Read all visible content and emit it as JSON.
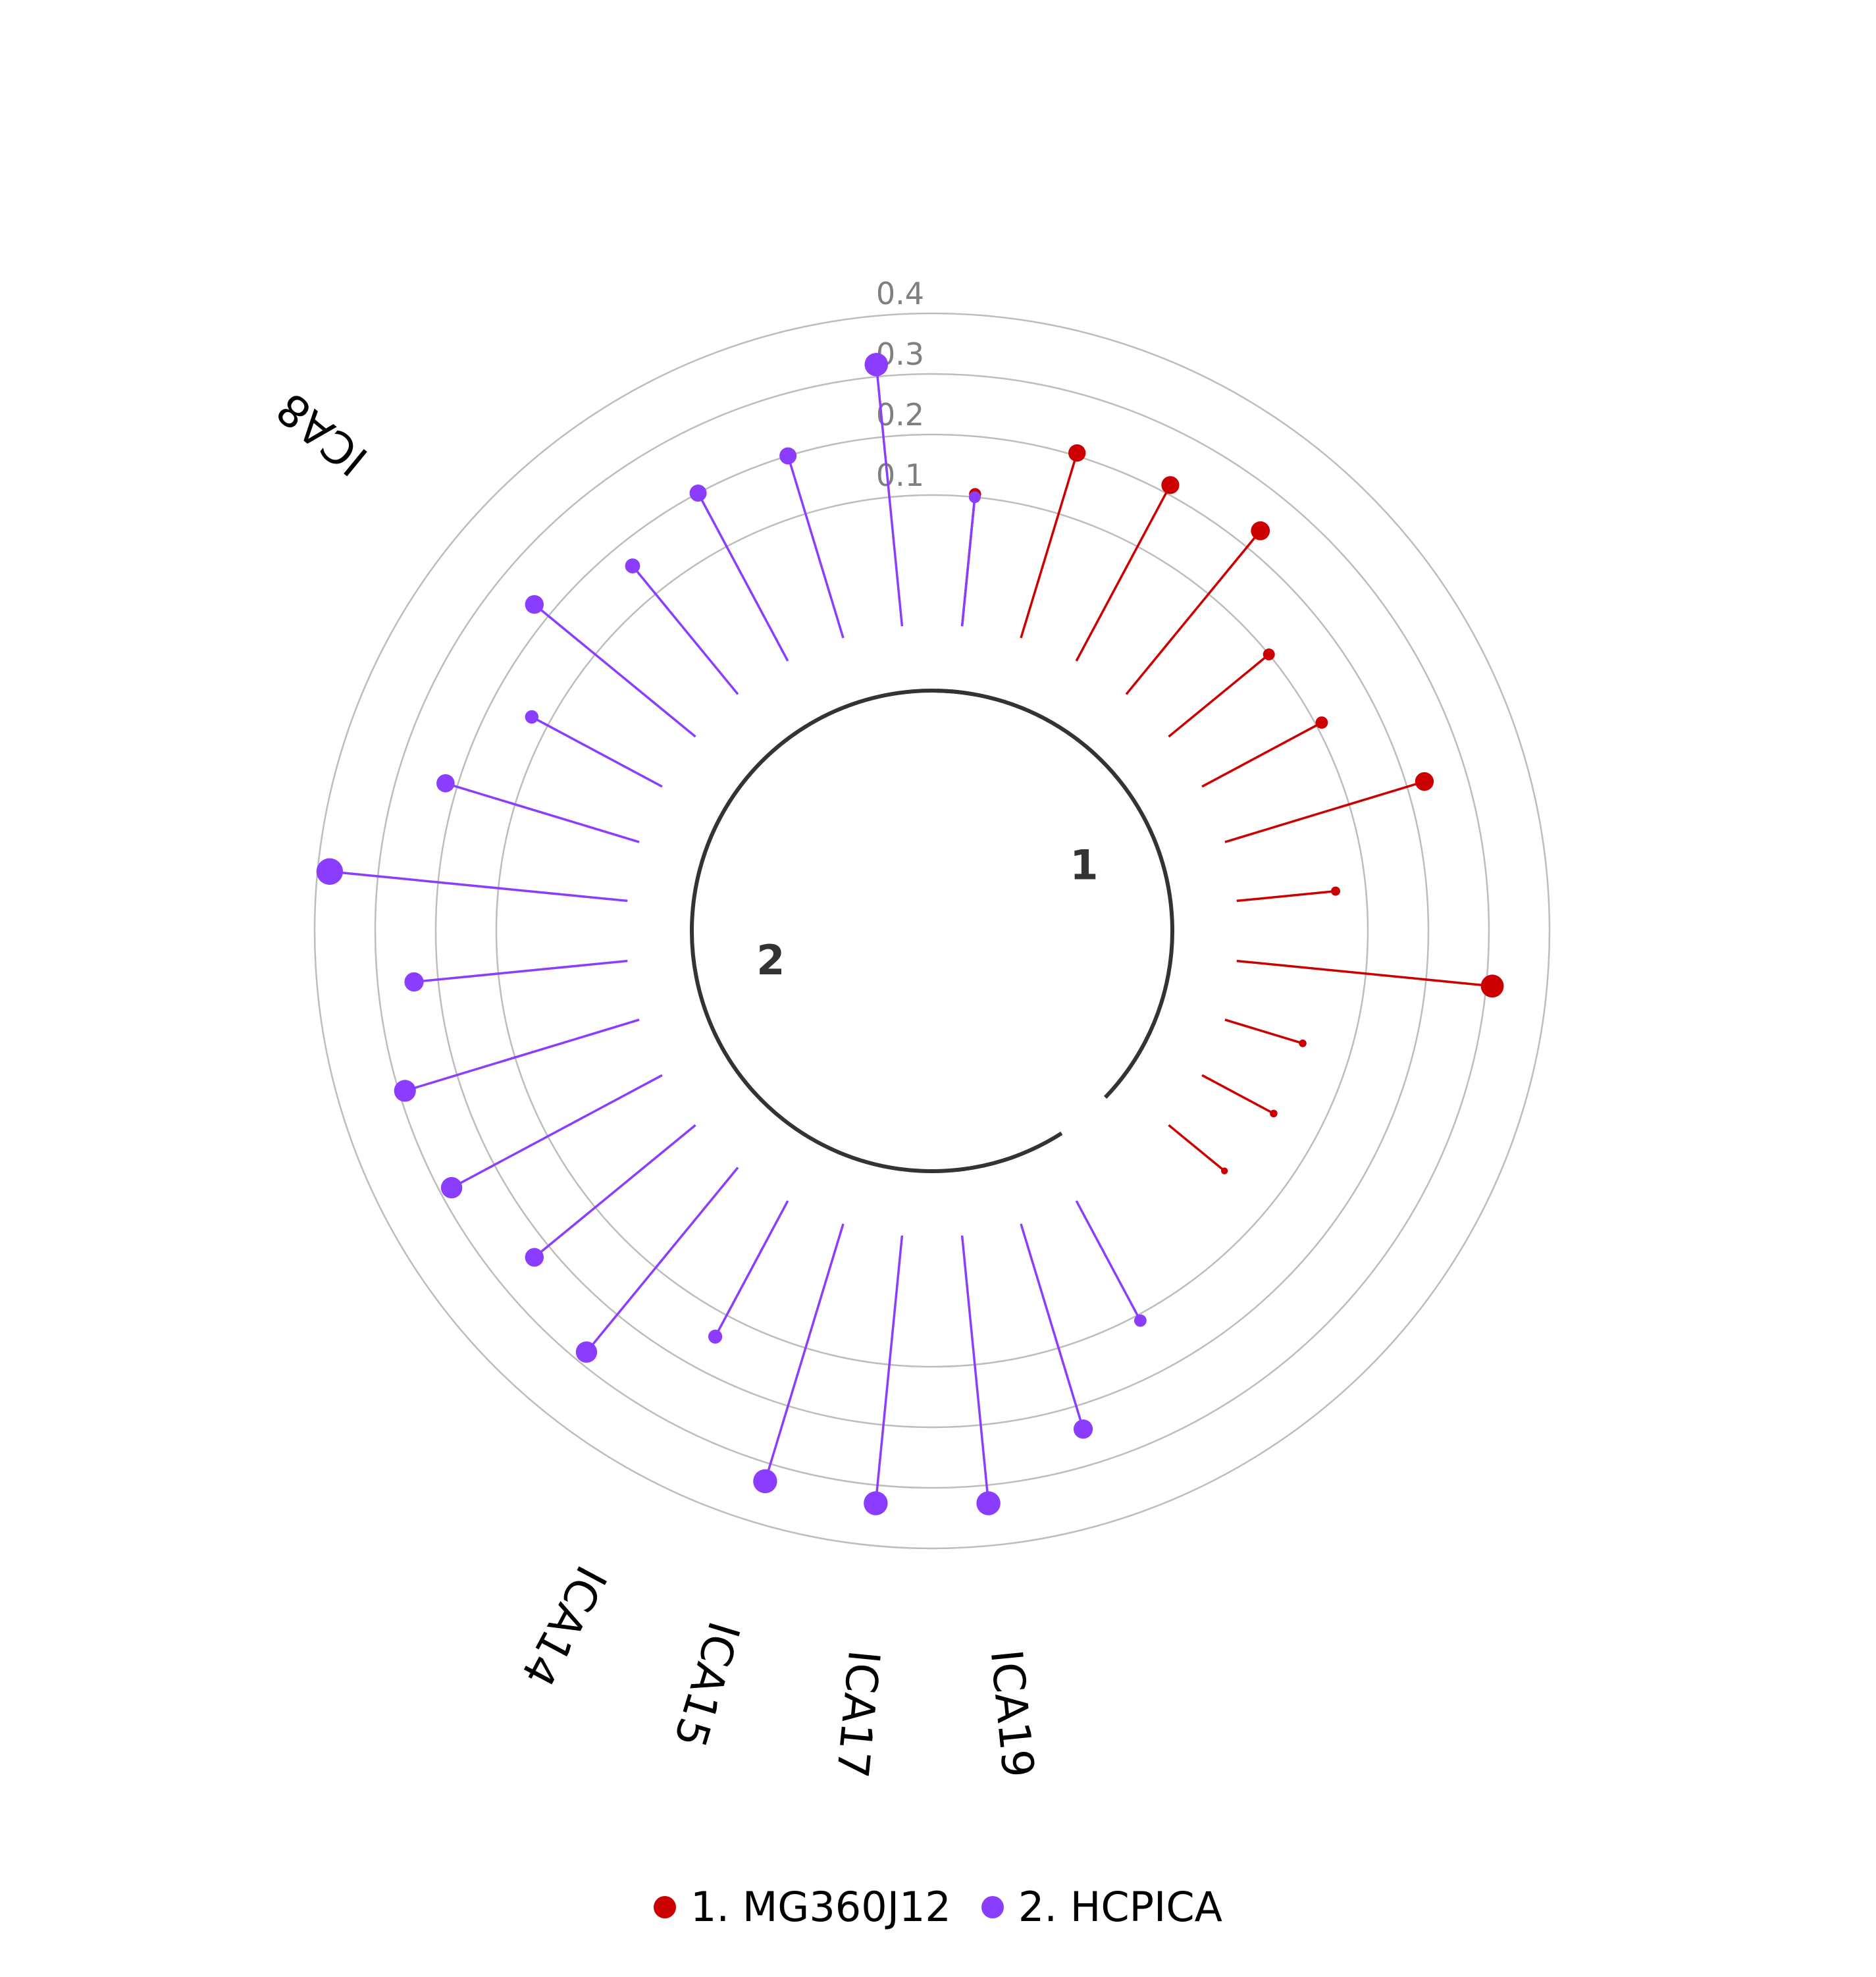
{
  "chart_data": {
    "type": "radial-lollipop",
    "radial_ticks": [
      "0.1",
      "0.2",
      "0.3",
      "0.4"
    ],
    "rlim": [
      0,
      0.4
    ],
    "groups": [
      {
        "label": "1",
        "legend": "1. MG360J12",
        "color": "#cc0000"
      },
      {
        "label": "2",
        "legend": "2. HCPICA",
        "color": "#8b3dff"
      }
    ],
    "points": [
      {
        "group": 1,
        "value": 0.105
      },
      {
        "group": 1,
        "value": 0.205
      },
      {
        "group": 1,
        "value": 0.215
      },
      {
        "group": 1,
        "value": 0.235
      },
      {
        "group": 1,
        "value": 0.1
      },
      {
        "group": 1,
        "value": 0.11
      },
      {
        "group": 1,
        "value": 0.23
      },
      {
        "group": 1,
        "value": 0.05
      },
      {
        "group": 1,
        "value": 0.31
      },
      {
        "group": 1,
        "value": 0.02
      },
      {
        "group": 1,
        "value": 0.02
      },
      {
        "group": 1,
        "value": 0.005
      },
      {
        "group": 2,
        "value": 0.11,
        "label": ""
      },
      {
        "group": 2,
        "value": 0.24,
        "label": ""
      },
      {
        "group": 2,
        "value": 0.33,
        "label": "ICA19"
      },
      {
        "group": 2,
        "value": 0.33,
        "label": "ICA17"
      },
      {
        "group": 2,
        "value": 0.33,
        "label": "ICA15"
      },
      {
        "group": 2,
        "value": 0.14,
        "label": "ICA14"
      },
      {
        "group": 2,
        "value": 0.28,
        "label": ""
      },
      {
        "group": 2,
        "value": 0.23,
        "label": ""
      },
      {
        "group": 2,
        "value": 0.28,
        "label": ""
      },
      {
        "group": 2,
        "value": 0.29,
        "label": ""
      },
      {
        "group": 2,
        "value": 0.24,
        "label": ""
      },
      {
        "group": 2,
        "value": 0.38,
        "label": ""
      },
      {
        "group": 2,
        "value": 0.22,
        "label": ""
      },
      {
        "group": 2,
        "value": 0.13,
        "label": ""
      },
      {
        "group": 2,
        "value": 0.23,
        "label": "ICA8"
      },
      {
        "group": 2,
        "value": 0.16,
        "label": ""
      },
      {
        "group": 2,
        "value": 0.2,
        "label": ""
      },
      {
        "group": 2,
        "value": 0.2,
        "label": ""
      },
      {
        "group": 2,
        "value": 0.32,
        "label": ""
      },
      {
        "group": 2,
        "value": 0.1,
        "label": ""
      }
    ]
  }
}
